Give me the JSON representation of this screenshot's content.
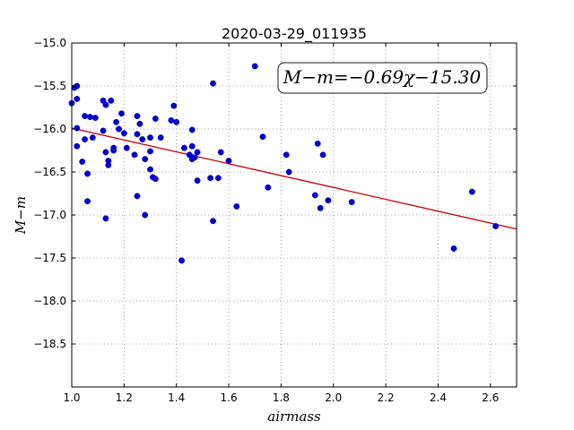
{
  "chart_data": {
    "type": "scatter",
    "title": "2020-03-29_011935",
    "xlabel": "airmass",
    "ylabel": "M−m",
    "xlim": [
      1.0,
      2.7
    ],
    "ylim": [
      -19.0,
      -15.0
    ],
    "y_inverted": true,
    "x_ticks": [
      1.0,
      1.2,
      1.4,
      1.6,
      1.8,
      2.0,
      2.2,
      2.4,
      2.6
    ],
    "x_tick_labels": [
      "1.0",
      "1.2",
      "1.4",
      "1.6",
      "1.8",
      "2.0",
      "2.2",
      "2.4",
      "2.6"
    ],
    "y_ticks": [
      -15.0,
      -15.5,
      -16.0,
      -16.5,
      -17.0,
      -17.5,
      -18.0,
      -18.5
    ],
    "y_tick_labels": [
      "−15.0",
      "−15.5",
      "−16.0",
      "−16.5",
      "−17.0",
      "−17.5",
      "−18.0",
      "−18.5"
    ],
    "grid": true,
    "annotation": "M−m=−0.69χ−15.30",
    "fit": {
      "slope": -0.69,
      "intercept": -15.3,
      "x_range": [
        1.0,
        2.7
      ]
    },
    "point_color": "#0000cc",
    "fit_color": "#cc0000",
    "series": [
      {
        "x": [
          1.0,
          1.01,
          1.02,
          1.02,
          1.02,
          1.02,
          1.04,
          1.05,
          1.05,
          1.06,
          1.06,
          1.07,
          1.08,
          1.09,
          1.12,
          1.12,
          1.13,
          1.13,
          1.13,
          1.14,
          1.14,
          1.15,
          1.16,
          1.16,
          1.17,
          1.18,
          1.19,
          1.2,
          1.21,
          1.24,
          1.25,
          1.25,
          1.25,
          1.26,
          1.27,
          1.28,
          1.28,
          1.3,
          1.3,
          1.3,
          1.31,
          1.32,
          1.32,
          1.34,
          1.38,
          1.39,
          1.4,
          1.42,
          1.43,
          1.45,
          1.46,
          1.46,
          1.46,
          1.46,
          1.47,
          1.48,
          1.48,
          1.53,
          1.54,
          1.54,
          1.56,
          1.57,
          1.6,
          1.63,
          1.7,
          1.73,
          1.75,
          1.82,
          1.83,
          1.93,
          1.94,
          1.95,
          1.96,
          1.98,
          2.07,
          2.46,
          2.53,
          2.62
        ],
        "y": [
          -15.7,
          -15.52,
          -15.5,
          -15.65,
          -16.2,
          -15.99,
          -16.38,
          -15.85,
          -16.12,
          -16.84,
          -16.52,
          -15.86,
          -16.1,
          -15.87,
          -15.67,
          -16.02,
          -16.27,
          -15.72,
          -17.04,
          -16.42,
          -16.37,
          -15.67,
          -16.22,
          -16.25,
          -15.92,
          -16.0,
          -15.82,
          -16.05,
          -16.22,
          -16.3,
          -16.06,
          -16.78,
          -15.85,
          -15.94,
          -16.12,
          -17.0,
          -16.35,
          -16.1,
          -16.47,
          -16.26,
          -16.56,
          -16.58,
          -15.88,
          -16.1,
          -15.9,
          -15.73,
          -15.92,
          -17.53,
          -16.22,
          -16.3,
          -16.35,
          -16.01,
          -16.2,
          -16.33,
          -16.33,
          -16.6,
          -16.27,
          -16.57,
          -15.47,
          -17.07,
          -16.57,
          -16.27,
          -16.37,
          -16.9,
          -15.27,
          -16.09,
          -16.68,
          -16.3,
          -16.5,
          -16.77,
          -16.17,
          -16.92,
          -16.3,
          -16.83,
          -16.85,
          -17.39,
          -16.73,
          -17.13
        ]
      }
    ]
  }
}
